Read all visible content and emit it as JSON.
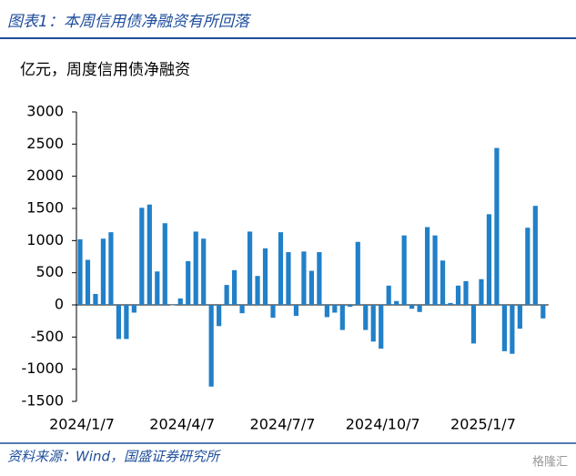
{
  "chart_data": {
    "type": "bar",
    "title": "图表1：本周信用债净融资有所回落",
    "y_label": "亿元，周度信用债净融资",
    "source": "资料来源：Wind，国盛证券研究所",
    "watermark": "格隆汇",
    "color": "#2180c8",
    "categories": [
      "2024/1/7",
      null,
      null,
      null,
      null,
      null,
      null,
      null,
      null,
      null,
      null,
      null,
      null,
      "2024/4/7",
      null,
      null,
      null,
      null,
      null,
      null,
      null,
      null,
      null,
      null,
      null,
      null,
      "2024/7/7",
      null,
      null,
      null,
      null,
      null,
      null,
      null,
      null,
      null,
      null,
      null,
      null,
      "2024/10/7",
      null,
      null,
      null,
      null,
      null,
      null,
      null,
      null,
      null,
      null,
      null,
      null,
      "2025/1/7",
      null,
      null,
      null,
      null,
      null,
      null,
      null,
      null
    ],
    "values": [
      1020,
      700,
      170,
      1030,
      1130,
      -530,
      -530,
      -120,
      1510,
      1560,
      520,
      1270,
      0,
      100,
      680,
      1140,
      1030,
      -1270,
      -330,
      310,
      540,
      -130,
      1140,
      450,
      880,
      -200,
      1130,
      820,
      -170,
      830,
      530,
      820,
      -190,
      -120,
      -390,
      -30,
      980,
      -390,
      -570,
      -680,
      300,
      60,
      1080,
      -60,
      -110,
      1210,
      1080,
      690,
      30,
      300,
      370,
      -600,
      400,
      1410,
      2440,
      -720,
      -760,
      -370,
      1200,
      1540,
      -210
    ],
    "ylim": [
      -1500,
      3000
    ],
    "yticks": [
      -1500,
      -1000,
      -500,
      0,
      500,
      1000,
      1500,
      2000,
      2500,
      3000
    ]
  }
}
